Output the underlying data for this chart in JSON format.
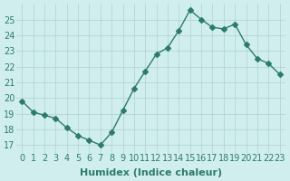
{
  "x": [
    0,
    1,
    2,
    3,
    4,
    5,
    6,
    7,
    8,
    9,
    10,
    11,
    12,
    13,
    14,
    15,
    16,
    17,
    18,
    19,
    20,
    21,
    22,
    23
  ],
  "y": [
    19.8,
    19.1,
    18.9,
    18.7,
    18.1,
    17.6,
    17.3,
    17.0,
    17.8,
    19.2,
    20.6,
    21.7,
    22.8,
    23.2,
    24.3,
    25.6,
    25.0,
    24.5,
    24.4,
    24.7,
    23.4,
    22.5,
    22.2,
    21.5
  ],
  "line_color": "#2e7b6e",
  "marker": "D",
  "marker_size": 3,
  "bg_color": "#d0eeee",
  "grid_color": "#b0d0d0",
  "xlabel": "Humidex (Indice chaleur)",
  "xlim": [
    -0.5,
    23.5
  ],
  "ylim": [
    16.5,
    26.0
  ],
  "yticks": [
    17,
    18,
    19,
    20,
    21,
    22,
    23,
    24,
    25
  ],
  "xticks": [
    0,
    1,
    2,
    3,
    4,
    5,
    6,
    7,
    8,
    9,
    10,
    11,
    12,
    13,
    14,
    15,
    16,
    17,
    18,
    19,
    20,
    21,
    22,
    23
  ],
  "tick_label_color": "#2e7b6e",
  "xlabel_color": "#2e7b6e",
  "tick_fontsize": 7,
  "xlabel_fontsize": 8
}
